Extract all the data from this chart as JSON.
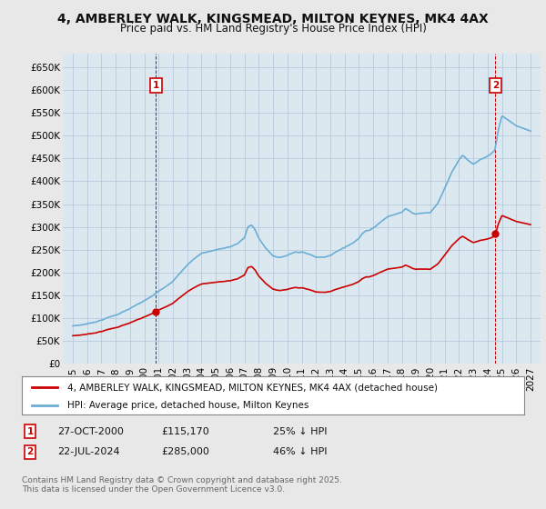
{
  "title": "4, AMBERLEY WALK, KINGSMEAD, MILTON KEYNES, MK4 4AX",
  "subtitle": "Price paid vs. HM Land Registry's House Price Index (HPI)",
  "bg_color": "#e8e8e8",
  "plot_bg_color": "#dce8f0",
  "grid_color": "#b0c4d8",
  "hpi_color": "#6baed6",
  "price_color": "#cc0000",
  "dashed_line_color": "#cc0000",
  "annotation1_date": "27-OCT-2000",
  "annotation1_price": 115170,
  "annotation1_hpi_pct": "25% ↓ HPI",
  "annotation2_date": "22-JUL-2024",
  "annotation2_price": 285000,
  "annotation2_hpi_pct": "46% ↓ HPI",
  "ylim": [
    0,
    680000
  ],
  "yticks": [
    0,
    50000,
    100000,
    150000,
    200000,
    250000,
    300000,
    350000,
    400000,
    450000,
    500000,
    550000,
    600000,
    650000
  ],
  "ytick_labels": [
    "£0",
    "£50K",
    "£100K",
    "£150K",
    "£200K",
    "£250K",
    "£300K",
    "£350K",
    "£400K",
    "£450K",
    "£500K",
    "£550K",
    "£600K",
    "£650K"
  ],
  "xtick_years": [
    1995,
    1996,
    1997,
    1998,
    1999,
    2000,
    2001,
    2002,
    2003,
    2004,
    2005,
    2006,
    2007,
    2008,
    2009,
    2010,
    2011,
    2012,
    2013,
    2014,
    2015,
    2016,
    2017,
    2018,
    2019,
    2020,
    2021,
    2022,
    2023,
    2024,
    2025,
    2026,
    2027
  ],
  "copyright_text": "Contains HM Land Registry data © Crown copyright and database right 2025.\nThis data is licensed under the Open Government Licence v3.0.",
  "legend_line1": "4, AMBERLEY WALK, KINGSMEAD, MILTON KEYNES, MK4 4AX (detached house)",
  "legend_line2": "HPI: Average price, detached house, Milton Keynes",
  "purchase1_x": 2000.82,
  "purchase1_y": 115170,
  "purchase2_x": 2024.55,
  "purchase2_y": 285000,
  "hpi_years": [
    1995,
    1995.5,
    1996,
    1996.5,
    1997,
    1997.5,
    1998,
    1998.5,
    1999,
    1999.5,
    2000,
    2000.5,
    2001,
    2001.5,
    2002,
    2002.5,
    2003,
    2003.5,
    2004,
    2004.5,
    2005,
    2005.5,
    2006,
    2006.5,
    2007,
    2007.25,
    2007.5,
    2007.75,
    2008,
    2008.5,
    2009,
    2009.5,
    2010,
    2010.5,
    2011,
    2011.5,
    2012,
    2012.5,
    2013,
    2013.5,
    2014,
    2014.5,
    2015,
    2015.25,
    2015.5,
    2015.75,
    2016,
    2016.5,
    2017,
    2017.5,
    2018,
    2018.25,
    2018.5,
    2018.75,
    2019,
    2019.5,
    2020,
    2020.5,
    2021,
    2021.5,
    2022,
    2022.25,
    2022.5,
    2022.75,
    2023,
    2023.5,
    2024,
    2024.25,
    2024.5,
    2024.75,
    2025,
    2025.5,
    2026,
    2027
  ],
  "hpi_values": [
    83000,
    85000,
    88000,
    92000,
    97000,
    103000,
    108000,
    115000,
    122000,
    130000,
    138000,
    147000,
    158000,
    170000,
    183000,
    200000,
    218000,
    232000,
    244000,
    248000,
    252000,
    255000,
    258000,
    265000,
    278000,
    302000,
    305000,
    295000,
    278000,
    255000,
    238000,
    235000,
    240000,
    248000,
    248000,
    244000,
    238000,
    238000,
    243000,
    252000,
    260000,
    270000,
    282000,
    292000,
    298000,
    300000,
    305000,
    318000,
    330000,
    335000,
    340000,
    348000,
    345000,
    340000,
    338000,
    340000,
    342000,
    362000,
    395000,
    430000,
    455000,
    465000,
    458000,
    452000,
    445000,
    455000,
    462000,
    468000,
    475000,
    520000,
    550000,
    540000,
    530000,
    520000
  ]
}
